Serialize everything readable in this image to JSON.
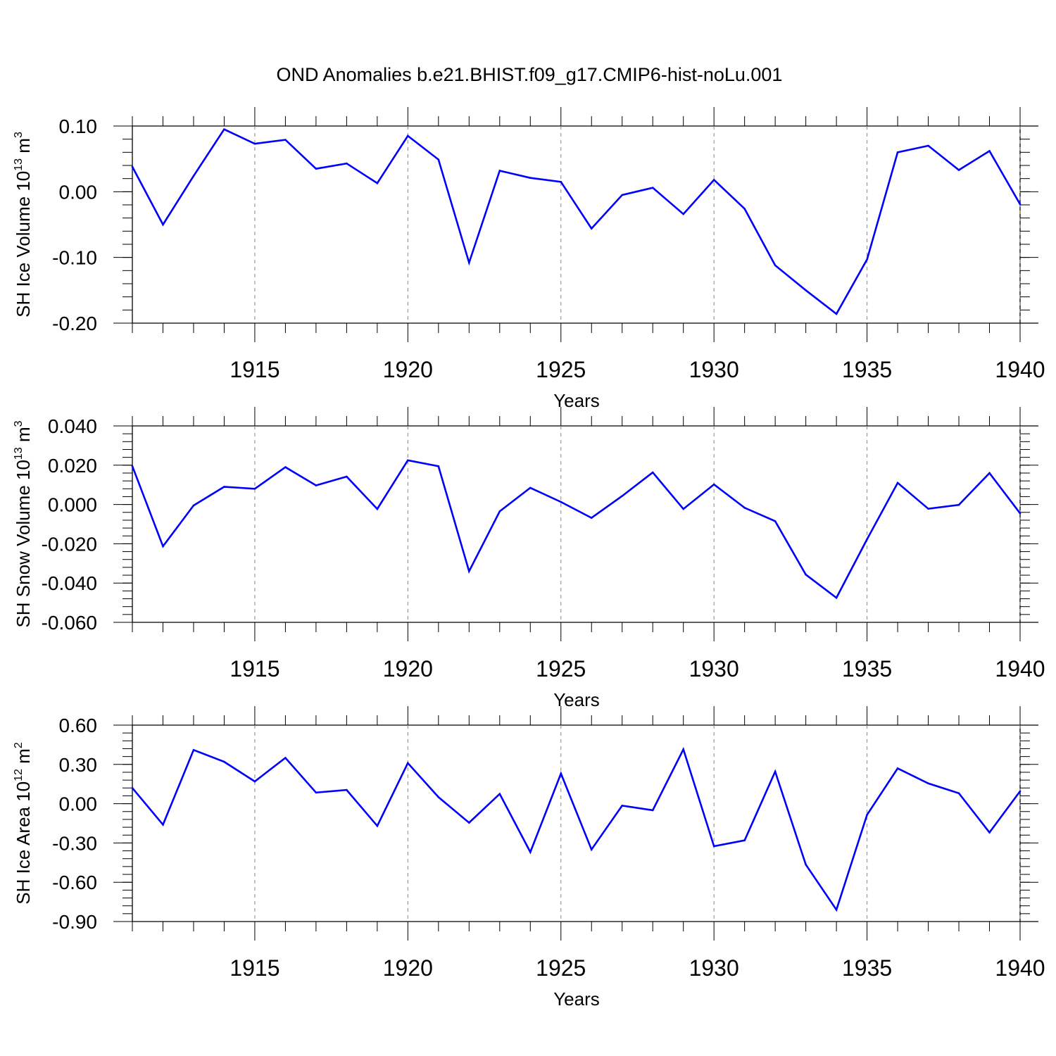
{
  "title": "OND Anomalies b.e21.BHIST.f09_g17.CMIP6-hist-noLu.001",
  "colors": {
    "line": "#0000ff",
    "axis": "#000000",
    "grid": "#888888"
  },
  "chart_data": [
    {
      "type": "line",
      "ylabel": "SH Ice Volume 10",
      "ylabel_exp": "13",
      "ylabel_unit": " m",
      "ylabel_unit_exp": "3",
      "xlabel": "Years",
      "xlim": [
        1911,
        1940
      ],
      "ylim": [
        -0.2,
        0.1
      ],
      "yticks": [
        0.1,
        0.0,
        -0.1,
        -0.2
      ],
      "ytick_labels": [
        "0.10",
        "0.00",
        "-0.10",
        "-0.20"
      ],
      "xticks": [
        1915,
        1920,
        1925,
        1930,
        1935,
        1940
      ],
      "xtick_labels": [
        "1915",
        "1920",
        "1925",
        "1930",
        "1935",
        "1940"
      ],
      "grid": "vertical dashed at major x ticks",
      "x": [
        1911,
        1912,
        1913,
        1914,
        1915,
        1916,
        1917,
        1918,
        1919,
        1920,
        1921,
        1922,
        1923,
        1924,
        1925,
        1926,
        1927,
        1928,
        1929,
        1930,
        1931,
        1932,
        1933,
        1934,
        1935,
        1936,
        1937,
        1938,
        1939,
        1940
      ],
      "series": [
        {
          "values": [
            0.038,
            -0.05,
            0.024,
            0.095,
            0.073,
            0.079,
            0.035,
            0.043,
            0.013,
            0.085,
            0.049,
            -0.108,
            0.032,
            0.021,
            0.015,
            -0.056,
            -0.005,
            0.006,
            -0.034,
            0.018,
            -0.026,
            -0.112,
            -0.15,
            -0.186,
            -0.103,
            0.06,
            0.07,
            0.033,
            0.062,
            -0.019
          ]
        }
      ]
    },
    {
      "type": "line",
      "ylabel": "SH Snow Volume 10",
      "ylabel_exp": "13",
      "ylabel_unit": " m",
      "ylabel_unit_exp": "3",
      "xlabel": "Years",
      "xlim": [
        1911,
        1940
      ],
      "ylim": [
        -0.06,
        0.04
      ],
      "yticks": [
        0.04,
        0.02,
        0.0,
        -0.02,
        -0.04,
        -0.06
      ],
      "ytick_labels": [
        "0.040",
        "0.020",
        "0.000",
        "-0.020",
        "-0.040",
        "-0.060"
      ],
      "xticks": [
        1915,
        1920,
        1925,
        1930,
        1935,
        1940
      ],
      "xtick_labels": [
        "1915",
        "1920",
        "1925",
        "1930",
        "1935",
        "1940"
      ],
      "grid": "vertical dashed at major x ticks",
      "x": [
        1911,
        1912,
        1913,
        1914,
        1915,
        1916,
        1917,
        1918,
        1919,
        1920,
        1921,
        1922,
        1923,
        1924,
        1925,
        1926,
        1927,
        1928,
        1929,
        1930,
        1931,
        1932,
        1933,
        1934,
        1935,
        1936,
        1937,
        1938,
        1939,
        1940
      ],
      "series": [
        {
          "values": [
            0.0195,
            -0.0213,
            -0.0005,
            0.009,
            0.008,
            0.019,
            0.0097,
            0.0142,
            -0.0023,
            0.0225,
            0.0195,
            -0.034,
            -0.0035,
            0.0085,
            0.0013,
            -0.0068,
            0.0043,
            0.0163,
            -0.0023,
            0.0102,
            -0.0017,
            -0.0085,
            -0.0357,
            -0.0475,
            -0.0177,
            0.011,
            -0.0022,
            -0.0002,
            0.016,
            -0.0045
          ]
        }
      ]
    },
    {
      "type": "line",
      "ylabel": "SH Ice Area 10",
      "ylabel_exp": "12",
      "ylabel_unit": " m",
      "ylabel_unit_exp": "2",
      "xlabel": "Years",
      "xlim": [
        1911,
        1940
      ],
      "ylim": [
        -0.9,
        0.6
      ],
      "yticks": [
        0.6,
        0.3,
        0.0,
        -0.3,
        -0.6,
        -0.9
      ],
      "ytick_labels": [
        "0.60",
        "0.30",
        "0.00",
        "-0.30",
        "-0.60",
        "-0.90"
      ],
      "xticks": [
        1915,
        1920,
        1925,
        1930,
        1935,
        1940
      ],
      "xtick_labels": [
        "1915",
        "1920",
        "1925",
        "1930",
        "1935",
        "1940"
      ],
      "grid": "vertical dashed at major x ticks",
      "x": [
        1911,
        1912,
        1913,
        1914,
        1915,
        1916,
        1917,
        1918,
        1919,
        1920,
        1921,
        1922,
        1923,
        1924,
        1925,
        1926,
        1927,
        1928,
        1929,
        1930,
        1931,
        1932,
        1933,
        1934,
        1935,
        1936,
        1937,
        1938,
        1939,
        1940
      ],
      "series": [
        {
          "values": [
            0.12,
            -0.16,
            0.41,
            0.32,
            0.17,
            0.35,
            0.085,
            0.105,
            -0.17,
            0.31,
            0.05,
            -0.145,
            0.075,
            -0.37,
            0.23,
            -0.35,
            -0.015,
            -0.05,
            0.415,
            -0.325,
            -0.28,
            0.245,
            -0.465,
            -0.81,
            -0.085,
            0.27,
            0.155,
            0.08,
            -0.22,
            0.095
          ]
        }
      ]
    }
  ]
}
